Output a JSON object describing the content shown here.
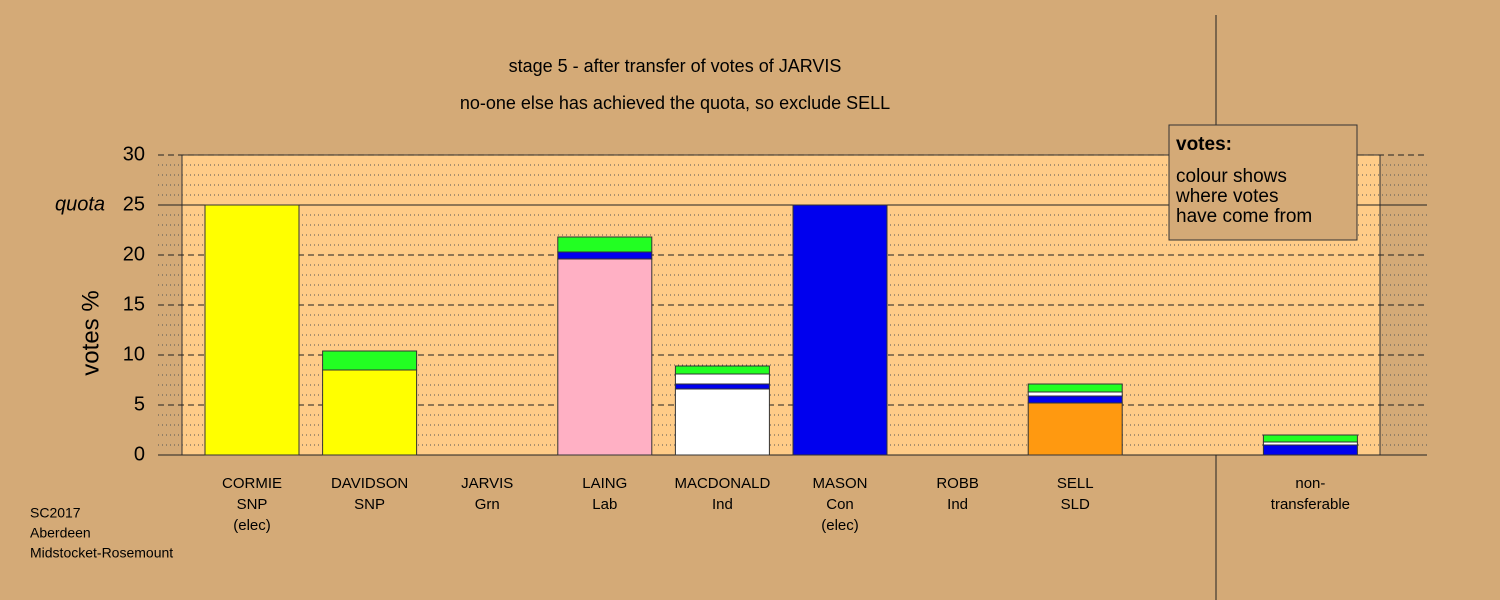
{
  "chart_data": {
    "type": "bar",
    "stacked": true,
    "title": "stage 5 - after transfer of votes of JARVIS",
    "subtitle": "no-one else has achieved the quota, so exclude SELL",
    "y_label": "votes %",
    "categories": [
      [
        "CORMIE",
        "SNP",
        "(elec)"
      ],
      [
        "DAVIDSON",
        "SNP"
      ],
      [
        "JARVIS",
        "Grn"
      ],
      [
        "LAING",
        "Lab"
      ],
      [
        "MACDONALD",
        "Ind"
      ],
      [
        "MASON",
        "Con",
        "(elec)"
      ],
      [
        "ROBB",
        "Ind"
      ],
      [
        "SELL",
        "SLD"
      ],
      null,
      [
        "non-",
        "transferable"
      ]
    ],
    "series": [
      {
        "color": "#ffff00",
        "values": [
          25,
          8.5,
          0,
          0,
          0,
          0,
          0,
          0,
          null,
          0
        ]
      },
      {
        "color": "#ffb0c4",
        "values": [
          0,
          0,
          0,
          19.6,
          0,
          0,
          0,
          0,
          null,
          0
        ]
      },
      {
        "color": "#ff9910",
        "values": [
          0,
          0,
          0,
          0,
          0,
          0,
          0,
          5.2,
          null,
          0
        ]
      },
      {
        "color": "#ffffff",
        "values": [
          0,
          0,
          0,
          0,
          6.6,
          0,
          0,
          0,
          null,
          0
        ]
      },
      {
        "color": "#0000ee",
        "values": [
          0,
          0,
          0,
          0.7,
          0.5,
          25,
          0,
          0.7,
          null,
          1.0
        ]
      },
      {
        "color": "#ffffff",
        "values": [
          0,
          0,
          0,
          0,
          1.0,
          0,
          0,
          0.4,
          null,
          0.3
        ]
      },
      {
        "color": "#22ff22",
        "values": [
          0,
          1.9,
          0,
          1.5,
          0.8,
          0,
          0,
          0.8,
          null,
          0.7
        ]
      }
    ],
    "ylim": [
      0,
      30
    ],
    "yticks": [
      0,
      5,
      10,
      15,
      20,
      25,
      30
    ],
    "minor_yticks": [
      1,
      2,
      3,
      4,
      6,
      7,
      8,
      9,
      11,
      12,
      13,
      14,
      16,
      17,
      18,
      19,
      21,
      22,
      23,
      24,
      26,
      27,
      28,
      29
    ],
    "quota": 25,
    "quota_label": "quota",
    "grid": true,
    "legend_box": {
      "heading": "votes:",
      "lines": [
        "colour shows",
        "where votes",
        "have come from"
      ]
    },
    "footer": [
      "SC2017",
      "Aberdeen",
      "Midstocket-Rosemount"
    ]
  }
}
